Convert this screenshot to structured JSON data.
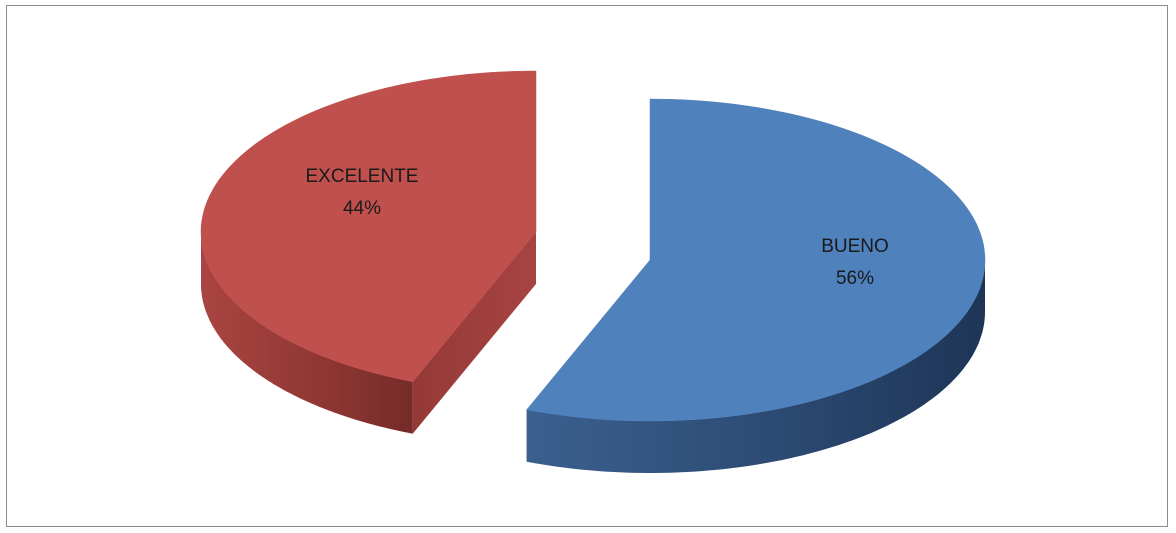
{
  "chart_data": {
    "type": "pie",
    "style": "3d-exploded",
    "categories": [
      "BUENO",
      "EXCELENTE"
    ],
    "values": [
      56,
      44
    ],
    "unit": "%",
    "slices": [
      {
        "name": "BUENO",
        "value": 56,
        "label": "BUENO",
        "value_label": "56%",
        "color": "#4f81bd"
      },
      {
        "name": "EXCELENTE",
        "value": 44,
        "label": "EXCELENTE",
        "value_label": "44%",
        "color": "#c0504d"
      }
    ],
    "legend": "none",
    "grid": false
  }
}
